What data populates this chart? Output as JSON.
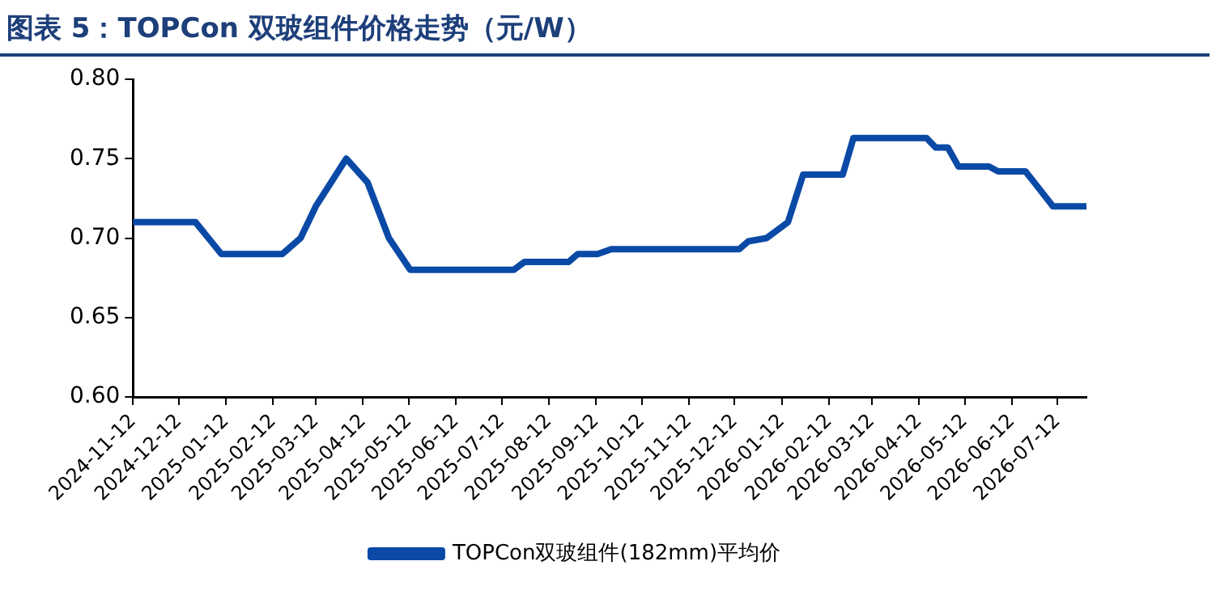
{
  "chart_data": {
    "type": "line",
    "title": "图表 5：TOPCon 双玻组件价格走势（元/W）",
    "x": [
      "2024-11-12",
      "2024-12-23",
      "2025-01-09",
      "2025-02-18",
      "2025-03-02",
      "2025-03-12",
      "2025-04-01",
      "2025-04-15",
      "2025-04-29",
      "2025-05-13",
      "2025-07-20",
      "2025-07-27",
      "2025-08-25",
      "2025-08-31",
      "2025-09-13",
      "2025-09-22",
      "2025-12-15",
      "2025-12-21",
      "2026-01-02",
      "2026-01-16",
      "2026-01-26",
      "2026-02-21",
      "2026-02-28",
      "2026-04-17",
      "2026-04-23",
      "2026-05-01",
      "2026-05-08",
      "2026-05-28",
      "2026-06-03",
      "2026-06-21",
      "2026-07-09",
      "2026-07-31"
    ],
    "series": [
      {
        "name": "TOPCon双玻组件(182mm)平均价",
        "color": "#0a4aa6",
        "values": [
          0.71,
          0.71,
          0.69,
          0.69,
          0.7,
          0.72,
          0.75,
          0.735,
          0.7,
          0.68,
          0.68,
          0.685,
          0.685,
          0.69,
          0.69,
          0.693,
          0.693,
          0.698,
          0.7,
          0.71,
          0.74,
          0.74,
          0.763,
          0.763,
          0.757,
          0.757,
          0.745,
          0.745,
          0.742,
          0.742,
          0.72,
          0.72
        ]
      }
    ],
    "xlim": [
      "2024-11-12",
      "2026-07-31"
    ],
    "xticks": [
      "2024-11-12",
      "2024-12-12",
      "2025-01-12",
      "2025-02-12",
      "2025-03-12",
      "2025-04-12",
      "2025-05-12",
      "2025-06-12",
      "2025-07-12",
      "2025-08-12",
      "2025-09-12",
      "2025-10-12",
      "2025-11-12",
      "2025-12-12",
      "2026-01-12",
      "2026-02-12",
      "2026-03-12",
      "2026-04-12",
      "2026-05-12",
      "2026-06-12",
      "2026-07-12"
    ],
    "ylim": [
      0.6,
      0.8
    ],
    "yticks": [
      {
        "value": 0.6,
        "label": "0.60"
      },
      {
        "value": 0.65,
        "label": "0.65"
      },
      {
        "value": 0.7,
        "label": "0.70"
      },
      {
        "value": 0.75,
        "label": "0.75"
      },
      {
        "value": 0.8,
        "label": "0.80"
      }
    ],
    "grid": false,
    "legend": "bottom",
    "marker": "none",
    "line_style": "solid"
  }
}
